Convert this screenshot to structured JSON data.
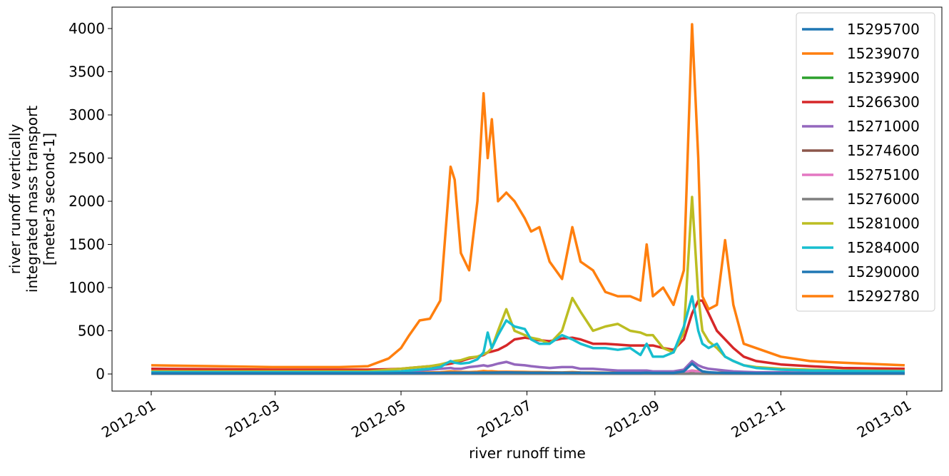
{
  "chart_data": {
    "type": "line",
    "ylabel": [
      "river runoff vertically",
      "integrated mass transport",
      "[meter3 second-1]"
    ],
    "xlabel": "river runoff time",
    "x": [
      "2012-01-01",
      "2012-02-01",
      "2012-03-01",
      "2012-04-01",
      "2012-04-15",
      "2012-04-25",
      "2012-05-01",
      "2012-05-05",
      "2012-05-10",
      "2012-05-15",
      "2012-05-20",
      "2012-05-25",
      "2012-05-27",
      "2012-05-30",
      "2012-06-03",
      "2012-06-07",
      "2012-06-10",
      "2012-06-12",
      "2012-06-14",
      "2012-06-17",
      "2012-06-21",
      "2012-06-25",
      "2012-06-30",
      "2012-07-03",
      "2012-07-07",
      "2012-07-12",
      "2012-07-18",
      "2012-07-23",
      "2012-07-27",
      "2012-08-02",
      "2012-08-08",
      "2012-08-14",
      "2012-08-20",
      "2012-08-25",
      "2012-08-28",
      "2012-08-31",
      "2012-09-05",
      "2012-09-10",
      "2012-09-15",
      "2012-09-19",
      "2012-09-22",
      "2012-09-24",
      "2012-09-27",
      "2012-10-01",
      "2012-10-05",
      "2012-10-09",
      "2012-10-14",
      "2012-10-20",
      "2012-11-01",
      "2012-11-15",
      "2012-12-01",
      "2012-12-31"
    ],
    "series": [
      {
        "name": "15295700",
        "color": "#1f77b4",
        "values": [
          5,
          5,
          5,
          5,
          5,
          5,
          5,
          5,
          5,
          6,
          6,
          6,
          6,
          6,
          6,
          6,
          7,
          7,
          7,
          7,
          7,
          7,
          7,
          7,
          7,
          7,
          7,
          7,
          7,
          6,
          6,
          6,
          6,
          6,
          6,
          6,
          6,
          6,
          6,
          8,
          8,
          7,
          7,
          6,
          6,
          6,
          5,
          5,
          5,
          5,
          5,
          5
        ]
      },
      {
        "name": "15239070",
        "color": "#ff7f0e",
        "values": [
          10,
          10,
          10,
          10,
          10,
          12,
          12,
          14,
          16,
          18,
          20,
          30,
          28,
          24,
          22,
          26,
          34,
          30,
          32,
          26,
          26,
          25,
          24,
          22,
          22,
          20,
          18,
          22,
          18,
          17,
          15,
          15,
          15,
          14,
          20,
          14,
          15,
          13,
          18,
          40,
          30,
          15,
          13,
          14,
          20,
          14,
          10,
          10,
          10,
          10,
          10,
          10
        ]
      },
      {
        "name": "15239900",
        "color": "#2ca02c",
        "values": [
          3,
          3,
          3,
          3,
          3,
          3,
          3,
          3,
          3,
          3,
          3,
          4,
          4,
          4,
          4,
          4,
          4,
          4,
          4,
          4,
          4,
          4,
          4,
          4,
          4,
          4,
          4,
          4,
          4,
          4,
          4,
          4,
          4,
          4,
          4,
          4,
          4,
          4,
          4,
          5,
          5,
          4,
          4,
          4,
          4,
          4,
          3,
          3,
          3,
          3,
          3,
          3
        ]
      },
      {
        "name": "15266300",
        "color": "#d62728",
        "values": [
          60,
          55,
          50,
          50,
          50,
          55,
          60,
          70,
          80,
          90,
          100,
          120,
          130,
          150,
          180,
          200,
          220,
          250,
          260,
          280,
          330,
          400,
          420,
          410,
          390,
          380,
          410,
          420,
          400,
          350,
          350,
          340,
          330,
          330,
          330,
          330,
          300,
          280,
          400,
          700,
          850,
          850,
          700,
          500,
          400,
          300,
          200,
          150,
          110,
          90,
          70,
          60
        ]
      },
      {
        "name": "15271000",
        "color": "#9467bd",
        "values": [
          15,
          15,
          15,
          15,
          15,
          20,
          25,
          30,
          40,
          50,
          60,
          70,
          60,
          60,
          80,
          90,
          100,
          90,
          100,
          120,
          140,
          110,
          100,
          90,
          80,
          70,
          80,
          80,
          60,
          60,
          50,
          40,
          40,
          40,
          40,
          30,
          30,
          30,
          50,
          150,
          100,
          80,
          60,
          50,
          40,
          30,
          25,
          20,
          20,
          15,
          15,
          15
        ]
      },
      {
        "name": "15274600",
        "color": "#8c564b",
        "values": [
          4,
          4,
          4,
          4,
          4,
          4,
          5,
          5,
          5,
          5,
          6,
          6,
          6,
          6,
          6,
          6,
          7,
          7,
          7,
          7,
          7,
          7,
          7,
          6,
          6,
          6,
          6,
          6,
          6,
          6,
          6,
          6,
          6,
          6,
          6,
          6,
          6,
          6,
          6,
          8,
          7,
          6,
          6,
          6,
          5,
          5,
          5,
          4,
          4,
          4,
          4,
          4
        ]
      },
      {
        "name": "15275100",
        "color": "#e377c2",
        "values": [
          3,
          3,
          3,
          3,
          3,
          3,
          4,
          4,
          5,
          5,
          6,
          8,
          8,
          7,
          8,
          9,
          10,
          10,
          12,
          15,
          18,
          15,
          12,
          10,
          10,
          9,
          10,
          10,
          9,
          8,
          8,
          7,
          7,
          7,
          8,
          7,
          8,
          10,
          20,
          40,
          25,
          15,
          10,
          8,
          6,
          5,
          4,
          4,
          3,
          3,
          3,
          3
        ]
      },
      {
        "name": "15276000",
        "color": "#7f7f7f",
        "values": [
          2,
          2,
          2,
          2,
          2,
          2,
          2,
          2,
          3,
          3,
          3,
          3,
          3,
          3,
          3,
          3,
          3,
          3,
          3,
          3,
          3,
          3,
          3,
          3,
          3,
          3,
          3,
          3,
          3,
          3,
          3,
          3,
          3,
          3,
          3,
          3,
          3,
          3,
          3,
          4,
          4,
          3,
          3,
          3,
          3,
          3,
          2,
          2,
          2,
          2,
          2,
          2
        ]
      },
      {
        "name": "15281000",
        "color": "#bcbd22",
        "values": [
          30,
          30,
          30,
          30,
          30,
          50,
          60,
          70,
          80,
          90,
          110,
          140,
          150,
          160,
          190,
          200,
          230,
          250,
          300,
          500,
          750,
          500,
          450,
          420,
          400,
          350,
          500,
          880,
          720,
          500,
          550,
          580,
          500,
          480,
          450,
          450,
          300,
          250,
          480,
          2050,
          900,
          500,
          380,
          300,
          200,
          150,
          100,
          80,
          60,
          50,
          40,
          35
        ]
      },
      {
        "name": "15284000",
        "color": "#17becf",
        "values": [
          20,
          20,
          20,
          20,
          20,
          25,
          30,
          40,
          50,
          60,
          80,
          150,
          130,
          120,
          130,
          170,
          250,
          480,
          300,
          450,
          620,
          550,
          520,
          400,
          350,
          350,
          450,
          400,
          350,
          300,
          300,
          280,
          300,
          220,
          350,
          200,
          200,
          250,
          550,
          900,
          500,
          350,
          300,
          350,
          200,
          150,
          100,
          70,
          50,
          40,
          35,
          30
        ]
      },
      {
        "name": "15290000",
        "color": "#1f77b4",
        "values": [
          8,
          8,
          8,
          8,
          8,
          9,
          10,
          10,
          11,
          12,
          13,
          15,
          15,
          14,
          14,
          15,
          16,
          16,
          16,
          17,
          18,
          17,
          16,
          15,
          15,
          14,
          14,
          15,
          14,
          13,
          13,
          12,
          12,
          12,
          14,
          12,
          12,
          12,
          30,
          120,
          60,
          30,
          20,
          15,
          13,
          12,
          10,
          9,
          9,
          8,
          8,
          8
        ]
      },
      {
        "name": "15292780",
        "color": "#ff7f0e",
        "values": [
          100,
          90,
          80,
          80,
          90,
          180,
          300,
          450,
          620,
          640,
          850,
          2400,
          2250,
          1400,
          1200,
          2000,
          3250,
          2500,
          2950,
          2000,
          2100,
          2000,
          1800,
          1650,
          1700,
          1300,
          1100,
          1700,
          1300,
          1200,
          950,
          900,
          900,
          850,
          1500,
          900,
          1000,
          800,
          1200,
          4050,
          2500,
          900,
          750,
          800,
          1550,
          800,
          350,
          300,
          200,
          150,
          130,
          100
        ]
      }
    ],
    "xlim": [
      "2011-12-13",
      "2013-01-18"
    ],
    "xticks": [
      {
        "value": "2012-01-01",
        "label": "2012-01"
      },
      {
        "value": "2012-03-01",
        "label": "2012-03"
      },
      {
        "value": "2012-05-01",
        "label": "2012-05"
      },
      {
        "value": "2012-07-01",
        "label": "2012-07"
      },
      {
        "value": "2012-09-01",
        "label": "2012-09"
      },
      {
        "value": "2012-11-01",
        "label": "2012-11"
      },
      {
        "value": "2013-01-01",
        "label": "2013-01"
      }
    ],
    "ylim": [
      -198,
      4248
    ],
    "yticks": [
      0,
      500,
      1000,
      1500,
      2000,
      2500,
      3000,
      3500,
      4000
    ],
    "legend": "upper right"
  }
}
